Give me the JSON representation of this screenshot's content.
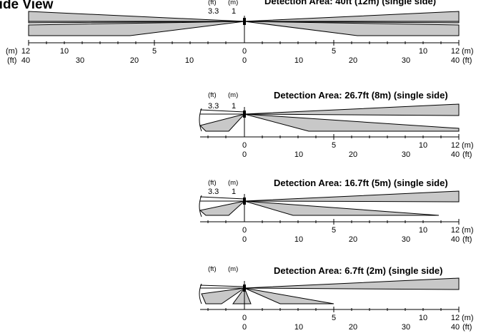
{
  "header": {
    "title": "Side View"
  },
  "colors": {
    "zone_fill": "#c8c8c8",
    "stroke": "#000000",
    "sensor": "#000000"
  },
  "units": {
    "m": "(m)",
    "ft": "(ft)"
  },
  "panels": [
    {
      "title": "Detection Area: 40ft (12m) (single side)",
      "height_ft": "3.3",
      "height_m": "1",
      "m_ticks": [
        "12",
        "10",
        "5",
        "0",
        "5",
        "10",
        "12"
      ],
      "ft_ticks": [
        "40",
        "30",
        "20",
        "10",
        "0",
        "10",
        "20",
        "30",
        "40"
      ]
    },
    {
      "title": "Detection Area: 26.7ft (8m) (single side)",
      "height_ft": "3.3",
      "height_m": "1",
      "m_ticks": [
        "0",
        "5",
        "10",
        "12"
      ],
      "ft_ticks": [
        "0",
        "10",
        "20",
        "30",
        "40"
      ]
    },
    {
      "title": "Detection Area: 16.7ft (5m) (single side)",
      "height_ft": "3.3",
      "height_m": "1",
      "m_ticks": [
        "0",
        "5",
        "10",
        "12"
      ],
      "ft_ticks": [
        "0",
        "10",
        "20",
        "30",
        "40"
      ]
    },
    {
      "title": "Detection Area: 6.7ft (2m) (single side)",
      "height_ft": "",
      "height_m": "",
      "m_ticks": [
        "0",
        "5",
        "10",
        "12"
      ],
      "ft_ticks": [
        "0",
        "10",
        "20",
        "30",
        "40"
      ]
    }
  ]
}
